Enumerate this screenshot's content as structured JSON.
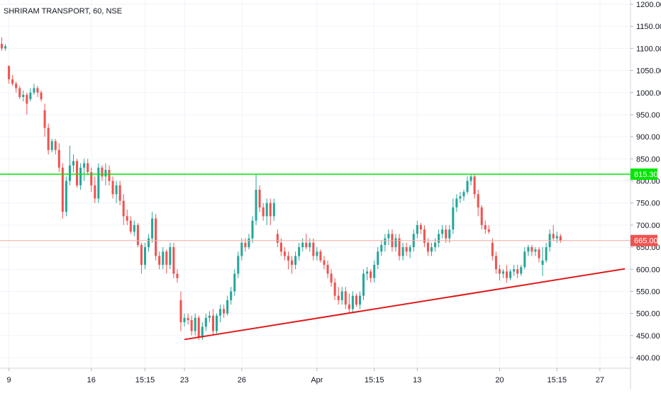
{
  "chart_data": {
    "type": "candlestick",
    "title": "SHRIRAM TRANSPORT, 60, NSE",
    "ylim": [
      380,
      1210
    ],
    "y_ticks": [
      400,
      450,
      500,
      550,
      600,
      650,
      700,
      750,
      800,
      850,
      900,
      950,
      1000,
      1050,
      1100,
      1150,
      1200
    ],
    "y_tick_labels": [
      "400.00",
      "450.00",
      "500.00",
      "550.00",
      "600.00",
      "650.00",
      "700.00",
      "750.00",
      "800.00",
      "850.00",
      "900.00",
      "950.00",
      "1000.00",
      "1050.00",
      "1100.00",
      "1150.00",
      "1200.00"
    ],
    "x_ticks": [
      {
        "label": "9",
        "bar": 2
      },
      {
        "label": "16",
        "bar": 25
      },
      {
        "label": "15:15",
        "bar": 40
      },
      {
        "label": "23",
        "bar": 51
      },
      {
        "label": "26",
        "bar": 67
      },
      {
        "label": "Apr",
        "bar": 88
      },
      {
        "label": "15:15",
        "bar": 104
      },
      {
        "label": "13",
        "bar": 116
      },
      {
        "label": "20",
        "bar": 139
      },
      {
        "label": "15:15",
        "bar": 155
      },
      {
        "label": "27",
        "bar": 167
      }
    ],
    "x_range": [
      -0.5,
      174
    ],
    "grid": true,
    "bar_spacing": 5.05,
    "x_offset": 2.5,
    "up_color": "#26a69a",
    "down_color": "#ef5350",
    "candles": [
      [
        1110,
        1125,
        1095,
        1100
      ],
      [
        1100,
        1110,
        1095,
        1105
      ],
      [
        1060,
        1062,
        1020,
        1030
      ],
      [
        1030,
        1040,
        1015,
        1020
      ],
      [
        1020,
        1025,
        1000,
        1010
      ],
      [
        1010,
        1015,
        985,
        990
      ],
      [
        990,
        1005,
        980,
        995
      ],
      [
        995,
        1000,
        950,
        975
      ],
      [
        985,
        1010,
        980,
        1000
      ],
      [
        1000,
        1020,
        995,
        1010
      ],
      [
        1010,
        1015,
        990,
        1000
      ],
      [
        1000,
        1005,
        980,
        985
      ],
      [
        960,
        975,
        900,
        920
      ],
      [
        920,
        930,
        860,
        870
      ],
      [
        870,
        895,
        865,
        890
      ],
      [
        890,
        895,
        860,
        870
      ],
      [
        870,
        885,
        820,
        830
      ],
      [
        830,
        840,
        715,
        730
      ],
      [
        730,
        810,
        720,
        800
      ],
      [
        800,
        880,
        790,
        835
      ],
      [
        835,
        860,
        820,
        845
      ],
      [
        845,
        850,
        785,
        790
      ],
      [
        790,
        840,
        780,
        830
      ],
      [
        830,
        850,
        800,
        840
      ],
      [
        840,
        850,
        815,
        820
      ],
      [
        820,
        830,
        775,
        790
      ],
      [
        790,
        810,
        750,
        760
      ],
      [
        760,
        840,
        750,
        830
      ],
      [
        830,
        835,
        800,
        810
      ],
      [
        810,
        840,
        790,
        825
      ],
      [
        825,
        835,
        790,
        800
      ],
      [
        800,
        810,
        760,
        770
      ],
      [
        770,
        800,
        750,
        790
      ],
      [
        790,
        800,
        745,
        755
      ],
      [
        755,
        770,
        700,
        720
      ],
      [
        720,
        735,
        700,
        710
      ],
      [
        710,
        720,
        680,
        685
      ],
      [
        685,
        710,
        675,
        700
      ],
      [
        700,
        705,
        650,
        655
      ],
      [
        655,
        660,
        590,
        610
      ],
      [
        610,
        660,
        600,
        650
      ],
      [
        650,
        680,
        640,
        670
      ],
      [
        670,
        730,
        660,
        715
      ],
      [
        715,
        725,
        620,
        630
      ],
      [
        630,
        640,
        600,
        610
      ],
      [
        610,
        650,
        600,
        640
      ],
      [
        640,
        645,
        590,
        610
      ],
      [
        610,
        660,
        600,
        650
      ],
      [
        650,
        660,
        580,
        590
      ],
      [
        590,
        600,
        570,
        580
      ],
      [
        530,
        550,
        460,
        480
      ],
      [
        480,
        500,
        470,
        490
      ],
      [
        490,
        500,
        475,
        485
      ],
      [
        485,
        495,
        450,
        460
      ],
      [
        460,
        500,
        450,
        490
      ],
      [
        490,
        495,
        440,
        445
      ],
      [
        445,
        480,
        440,
        470
      ],
      [
        470,
        500,
        460,
        490
      ],
      [
        490,
        505,
        480,
        495
      ],
      [
        495,
        510,
        450,
        460
      ],
      [
        460,
        500,
        455,
        495
      ],
      [
        495,
        520,
        480,
        510
      ],
      [
        510,
        520,
        490,
        500
      ],
      [
        500,
        540,
        495,
        530
      ],
      [
        530,
        560,
        520,
        550
      ],
      [
        550,
        600,
        540,
        590
      ],
      [
        590,
        640,
        580,
        630
      ],
      [
        630,
        670,
        620,
        660
      ],
      [
        660,
        670,
        640,
        650
      ],
      [
        650,
        680,
        645,
        670
      ],
      [
        670,
        720,
        660,
        710
      ],
      [
        710,
        815,
        700,
        780
      ],
      [
        780,
        790,
        730,
        740
      ],
      [
        740,
        750,
        710,
        720
      ],
      [
        720,
        760,
        700,
        750
      ],
      [
        750,
        760,
        700,
        720
      ],
      [
        720,
        760,
        710,
        750
      ],
      [
        680,
        690,
        650,
        660
      ],
      [
        660,
        670,
        630,
        640
      ],
      [
        640,
        650,
        620,
        630
      ],
      [
        630,
        640,
        600,
        620
      ],
      [
        620,
        630,
        590,
        610
      ],
      [
        610,
        640,
        600,
        630
      ],
      [
        630,
        660,
        620,
        650
      ],
      [
        650,
        670,
        640,
        660
      ],
      [
        660,
        680,
        645,
        650
      ],
      [
        650,
        670,
        640,
        660
      ],
      [
        660,
        670,
        620,
        630
      ],
      [
        630,
        650,
        620,
        640
      ],
      [
        640,
        645,
        615,
        620
      ],
      [
        620,
        630,
        600,
        610
      ],
      [
        610,
        620,
        580,
        590
      ],
      [
        590,
        600,
        560,
        570
      ],
      [
        570,
        580,
        530,
        540
      ],
      [
        540,
        560,
        520,
        530
      ],
      [
        530,
        560,
        520,
        550
      ],
      [
        550,
        560,
        510,
        520
      ],
      [
        520,
        545,
        500,
        510
      ],
      [
        510,
        550,
        500,
        540
      ],
      [
        540,
        545,
        515,
        520
      ],
      [
        520,
        550,
        510,
        540
      ],
      [
        540,
        600,
        530,
        590
      ],
      [
        590,
        605,
        575,
        595
      ],
      [
        595,
        600,
        570,
        580
      ],
      [
        580,
        620,
        570,
        610
      ],
      [
        610,
        650,
        600,
        640
      ],
      [
        640,
        665,
        630,
        655
      ],
      [
        655,
        680,
        640,
        670
      ],
      [
        670,
        690,
        655,
        680
      ],
      [
        680,
        690,
        640,
        650
      ],
      [
        650,
        680,
        640,
        670
      ],
      [
        670,
        680,
        620,
        630
      ],
      [
        630,
        660,
        620,
        650
      ],
      [
        650,
        660,
        630,
        640
      ],
      [
        640,
        655,
        625,
        650
      ],
      [
        650,
        690,
        640,
        680
      ],
      [
        680,
        710,
        670,
        700
      ],
      [
        700,
        705,
        680,
        690
      ],
      [
        690,
        700,
        650,
        660
      ],
      [
        660,
        670,
        630,
        640
      ],
      [
        640,
        660,
        630,
        650
      ],
      [
        650,
        670,
        640,
        660
      ],
      [
        660,
        690,
        650,
        680
      ],
      [
        680,
        700,
        670,
        690
      ],
      [
        690,
        700,
        660,
        670
      ],
      [
        670,
        700,
        660,
        690
      ],
      [
        690,
        760,
        680,
        740
      ],
      [
        740,
        770,
        730,
        760
      ],
      [
        760,
        775,
        750,
        765
      ],
      [
        765,
        780,
        755,
        775
      ],
      [
        775,
        810,
        770,
        800
      ],
      [
        800,
        815,
        790,
        810
      ],
      [
        810,
        815,
        760,
        770
      ],
      [
        770,
        780,
        720,
        740
      ],
      [
        740,
        745,
        690,
        700
      ],
      [
        700,
        710,
        680,
        690
      ],
      [
        690,
        700,
        680,
        685
      ],
      [
        660,
        670,
        620,
        630
      ],
      [
        630,
        640,
        590,
        600
      ],
      [
        600,
        610,
        575,
        590
      ],
      [
        590,
        600,
        580,
        595
      ],
      [
        595,
        610,
        570,
        580
      ],
      [
        580,
        600,
        575,
        595
      ],
      [
        595,
        610,
        585,
        600
      ],
      [
        600,
        610,
        580,
        590
      ],
      [
        590,
        610,
        585,
        605
      ],
      [
        605,
        650,
        600,
        640
      ],
      [
        640,
        655,
        630,
        650
      ],
      [
        650,
        655,
        630,
        640
      ],
      [
        640,
        650,
        630,
        645
      ],
      [
        645,
        650,
        615,
        625
      ],
      [
        610,
        650,
        585,
        620
      ],
      [
        620,
        660,
        615,
        650
      ],
      [
        650,
        690,
        640,
        680
      ],
      [
        680,
        700,
        665,
        670
      ],
      [
        670,
        685,
        660,
        675
      ],
      [
        675,
        680,
        660,
        665
      ]
    ],
    "lines": [
      {
        "name": "",
        "type": "horizontal",
        "y": 815.3,
        "color": "#00e600"
      },
      {
        "name": "",
        "type": "horizontal",
        "y": 665.0,
        "color": "#f7a7a4"
      },
      {
        "name": "",
        "type": "trendline",
        "from": {
          "bar": 51,
          "y": 441
        },
        "to": {
          "bar": 174,
          "y": 601
        },
        "color": "#e01919"
      }
    ],
    "price_labels": [
      {
        "text": "815.30",
        "y": 815.3,
        "color": "#00e600"
      },
      {
        "text": "665.00",
        "y": 665.0,
        "color": "#ef5350"
      }
    ]
  }
}
